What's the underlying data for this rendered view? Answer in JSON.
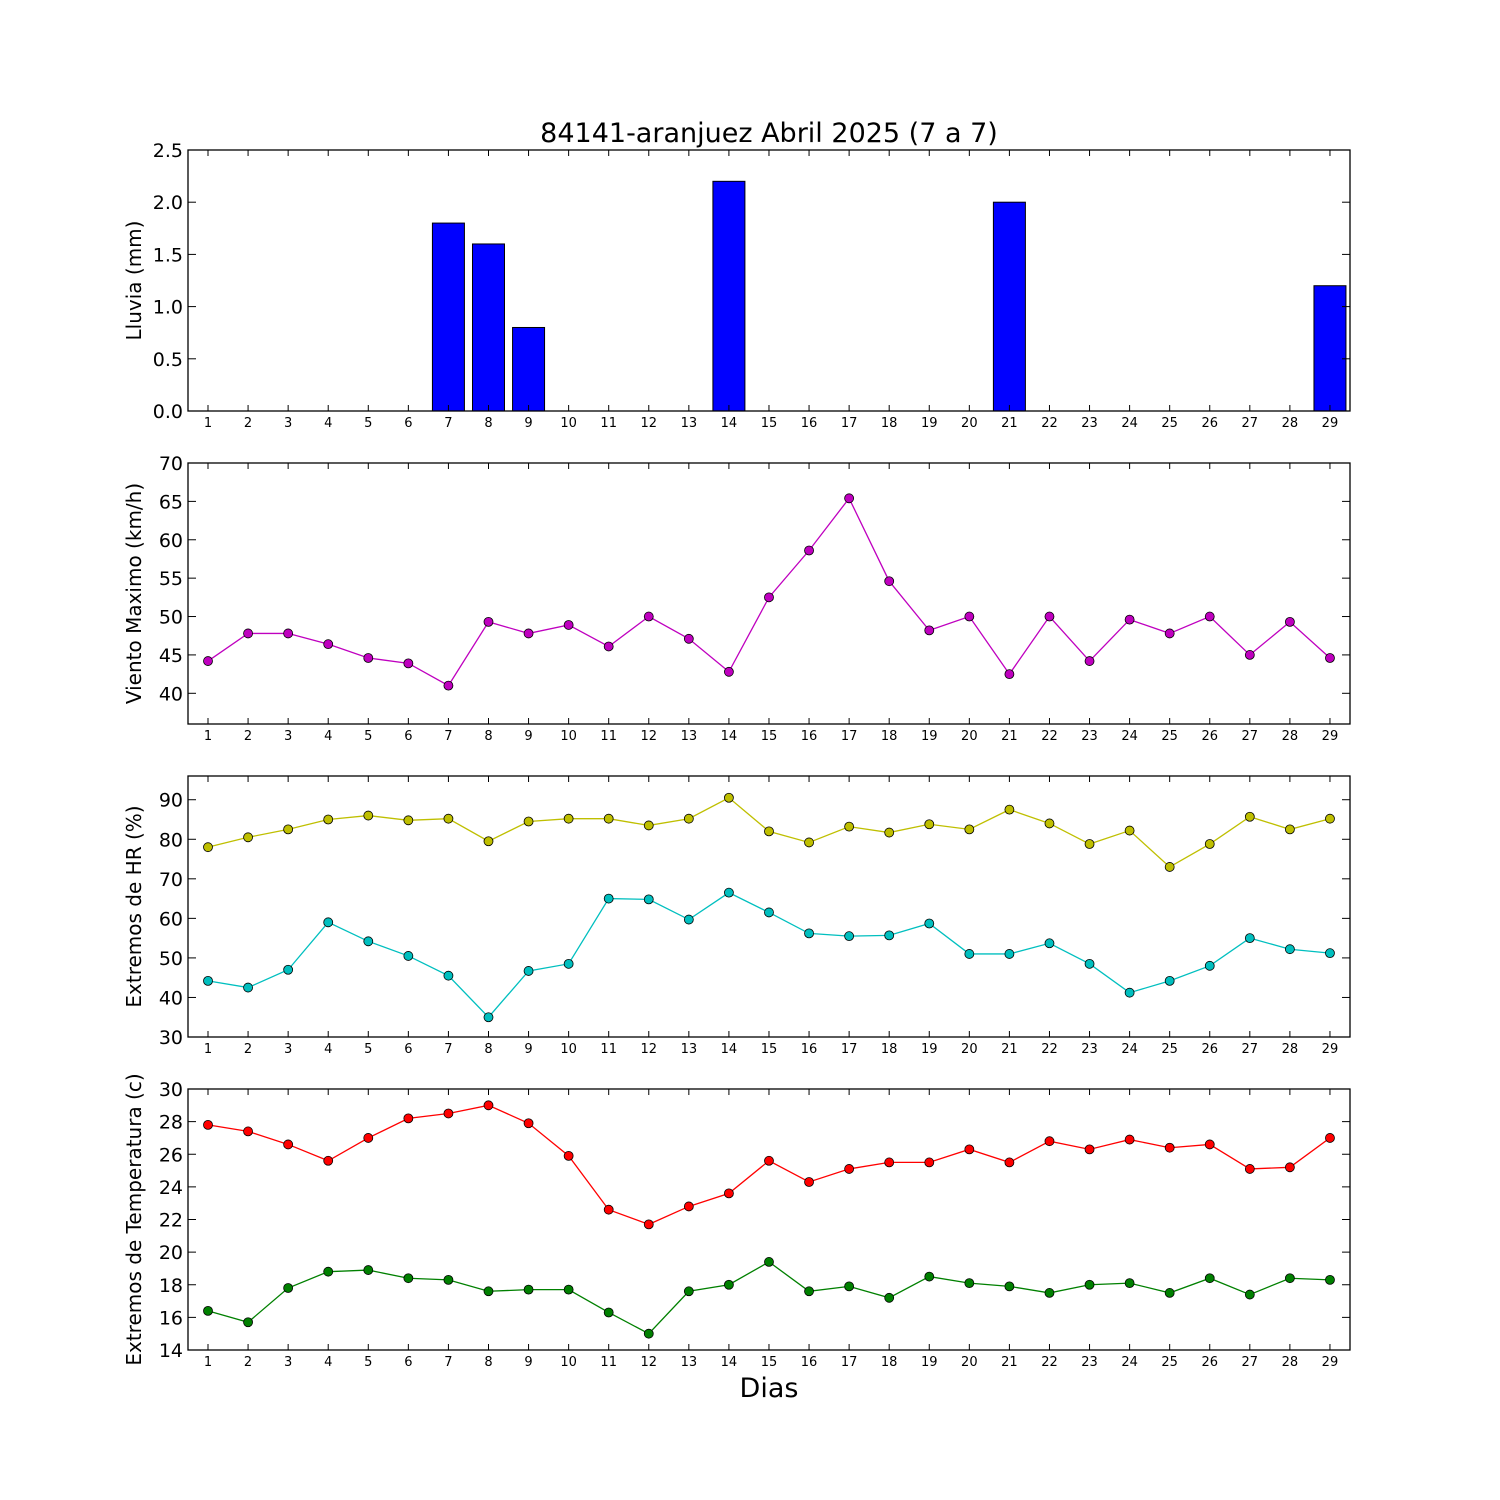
{
  "title": "84141-aranjuez Abril 2025  (7 a 7)",
  "xlabel": "Dias",
  "chart_data": [
    {
      "type": "bar",
      "title": "84141-aranjuez Abril 2025  (7 a 7)",
      "ylabel": "Lluvia (mm)",
      "xlabel": "",
      "ylim": [
        0,
        2.5
      ],
      "yticks": [
        0.0,
        0.5,
        1.0,
        1.5,
        2.0,
        2.5
      ],
      "ytick_labels": [
        "0.0",
        "0.5",
        "1.0",
        "1.5",
        "2.0",
        "2.5"
      ],
      "categories": [
        1,
        2,
        3,
        4,
        5,
        6,
        7,
        8,
        9,
        10,
        11,
        12,
        13,
        14,
        15,
        16,
        17,
        18,
        19,
        20,
        21,
        22,
        23,
        24,
        25,
        26,
        27,
        28,
        29
      ],
      "series": [
        {
          "values": [
            0,
            0,
            0,
            0,
            0,
            0,
            1.8,
            1.6,
            0.8,
            0,
            0,
            0,
            0,
            2.2,
            0,
            0,
            0,
            0,
            0,
            0,
            2.0,
            0,
            0,
            0,
            0,
            0,
            0,
            0,
            1.2
          ],
          "color": "#0000ff"
        }
      ],
      "grid": false
    },
    {
      "type": "line",
      "ylabel": "Viento Maximo (km/h)",
      "xlabel": "",
      "ylim": [
        36,
        70
      ],
      "yticks": [
        40,
        45,
        50,
        55,
        60,
        65,
        70
      ],
      "ytick_labels": [
        "40",
        "45",
        "50",
        "55",
        "60",
        "65",
        "70"
      ],
      "categories": [
        1,
        2,
        3,
        4,
        5,
        6,
        7,
        8,
        9,
        10,
        11,
        12,
        13,
        14,
        15,
        16,
        17,
        18,
        19,
        20,
        21,
        22,
        23,
        24,
        25,
        26,
        27,
        28,
        29
      ],
      "series": [
        {
          "values": [
            44.2,
            47.8,
            47.8,
            46.4,
            44.6,
            43.9,
            41.0,
            49.3,
            47.8,
            48.9,
            46.1,
            50.0,
            47.1,
            42.8,
            52.5,
            58.6,
            65.4,
            54.6,
            48.2,
            50.0,
            42.5,
            50.0,
            44.2,
            49.6,
            47.8,
            50.0,
            45.0,
            49.3,
            44.6
          ],
          "color": "#bf00bf"
        }
      ],
      "grid": false
    },
    {
      "type": "line",
      "ylabel": "Extremos de HR (%)",
      "xlabel": "",
      "ylim": [
        30,
        96
      ],
      "yticks": [
        30,
        40,
        50,
        60,
        70,
        80,
        90
      ],
      "ytick_labels": [
        "30",
        "40",
        "50",
        "60",
        "70",
        "80",
        "90"
      ],
      "categories": [
        1,
        2,
        3,
        4,
        5,
        6,
        7,
        8,
        9,
        10,
        11,
        12,
        13,
        14,
        15,
        16,
        17,
        18,
        19,
        20,
        21,
        22,
        23,
        24,
        25,
        26,
        27,
        28,
        29
      ],
      "series": [
        {
          "values": [
            78,
            80.5,
            82.5,
            85,
            86,
            84.8,
            85.2,
            79.5,
            84.5,
            85.2,
            85.2,
            83.5,
            85.2,
            90.5,
            82,
            79.2,
            83.2,
            81.7,
            83.8,
            82.5,
            87.5,
            84,
            78.8,
            82.2,
            73,
            78.8,
            85.7,
            82.5,
            85.2
          ],
          "color": "#bfbf00"
        },
        {
          "values": [
            44.2,
            42.5,
            47,
            59,
            54.2,
            50.5,
            45.5,
            35,
            46.7,
            48.5,
            65,
            64.8,
            59.7,
            66.5,
            61.5,
            56.2,
            55.5,
            55.7,
            58.7,
            51,
            51,
            53.7,
            48.5,
            41.2,
            44.2,
            48,
            55,
            52.2,
            51.2
          ],
          "color": "#00bfbf"
        }
      ],
      "grid": false
    },
    {
      "type": "line",
      "ylabel": "Extremos de Temperatura (c)",
      "xlabel": "Dias",
      "ylim": [
        14,
        30
      ],
      "yticks": [
        14,
        16,
        18,
        20,
        22,
        24,
        26,
        28,
        30
      ],
      "ytick_labels": [
        "14",
        "16",
        "18",
        "20",
        "22",
        "24",
        "26",
        "28",
        "30"
      ],
      "categories": [
        1,
        2,
        3,
        4,
        5,
        6,
        7,
        8,
        9,
        10,
        11,
        12,
        13,
        14,
        15,
        16,
        17,
        18,
        19,
        20,
        21,
        22,
        23,
        24,
        25,
        26,
        27,
        28,
        29
      ],
      "series": [
        {
          "values": [
            27.8,
            27.4,
            26.6,
            25.6,
            27,
            28.2,
            28.5,
            29,
            27.9,
            25.9,
            22.6,
            21.7,
            22.8,
            23.6,
            25.6,
            24.3,
            25.1,
            25.5,
            25.5,
            26.3,
            25.5,
            26.8,
            26.3,
            26.9,
            26.4,
            26.6,
            25.1,
            25.2,
            27
          ],
          "color": "#ff0000"
        },
        {
          "values": [
            16.4,
            15.7,
            17.8,
            18.8,
            18.9,
            18.4,
            18.3,
            17.6,
            17.7,
            17.7,
            16.3,
            15,
            17.6,
            18,
            19.4,
            17.6,
            17.9,
            17.2,
            18.5,
            18.1,
            17.9,
            17.5,
            18,
            18.1,
            17.5,
            18.4,
            17.4,
            18.4,
            18.3
          ],
          "color": "#008000"
        }
      ],
      "grid": false
    }
  ]
}
